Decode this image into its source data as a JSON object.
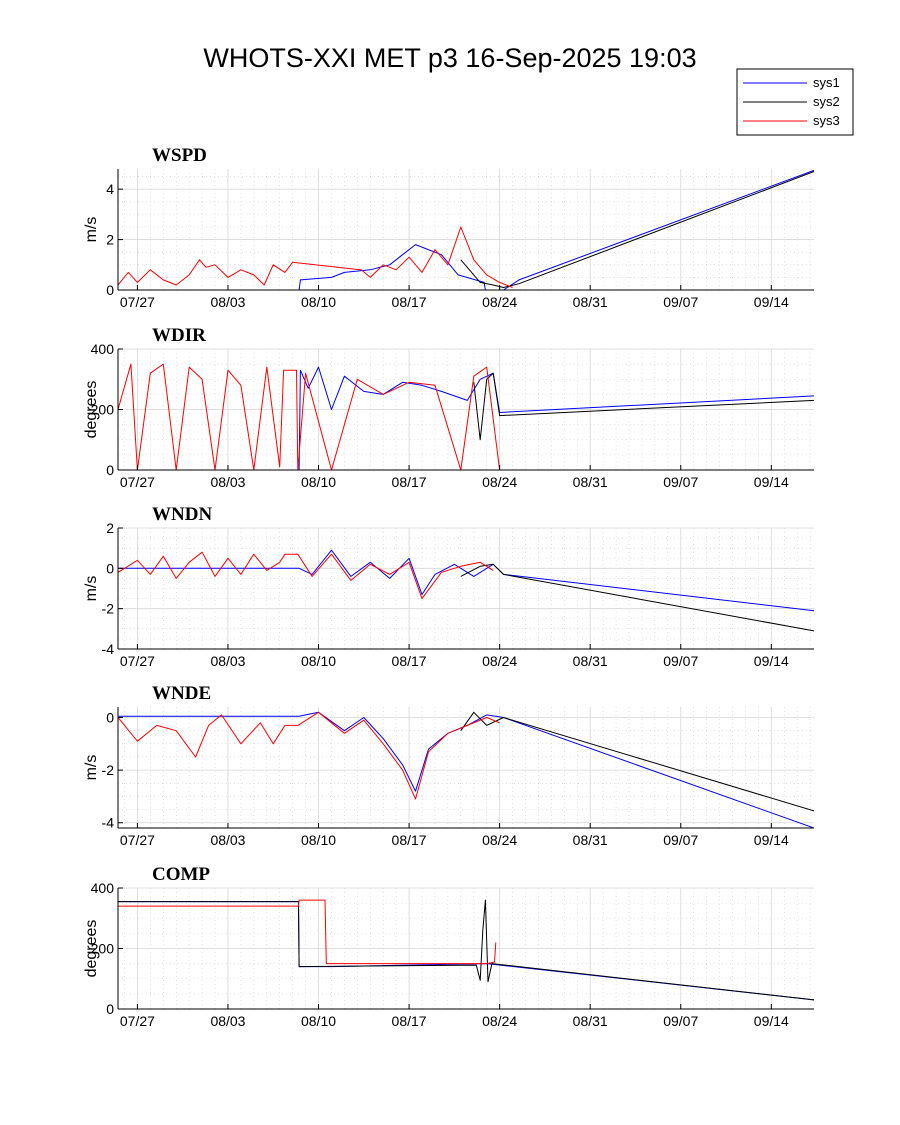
{
  "figure": {
    "title": "WHOTS-XXI MET p3 16-Sep-2025 19:03"
  },
  "legend": {
    "placement": "top-right",
    "entries": [
      {
        "label": "sys1",
        "color": "#0000ff"
      },
      {
        "label": "sys2",
        "color": "#000000"
      },
      {
        "label": "sys3",
        "color": "#ff0000"
      }
    ]
  },
  "chart_data": [
    {
      "type": "line",
      "title": "WSPD",
      "ylabel": "m/s",
      "xlim": [
        -0.5,
        53.3
      ],
      "ylim": [
        0,
        4.8
      ],
      "yticks": [
        0,
        2,
        4
      ],
      "xticks": [
        1,
        8,
        15,
        22,
        29,
        36,
        43,
        50
      ],
      "xticklabels": [
        "07/27",
        "08/03",
        "08/10",
        "08/17",
        "08/24",
        "08/31",
        "09/07",
        "09/14"
      ],
      "grid": true,
      "series": [
        {
          "name": "sys1",
          "color": "#0000ff",
          "x": [
            -0.5,
            13.5,
            13.6,
            16.0,
            17.0,
            19.0,
            20.5,
            21.5,
            22.5,
            24.5,
            25.8,
            27.8,
            27.9,
            29.3,
            30.5,
            53.3
          ],
          "y": [
            0.0,
            0.0,
            0.4,
            0.5,
            0.7,
            0.8,
            1.0,
            1.4,
            1.8,
            1.4,
            0.6,
            0.3,
            0.0,
            0.0,
            0.4,
            4.75
          ]
        },
        {
          "name": "sys2",
          "color": "#000000",
          "x": [
            26.0,
            27.5,
            28.5,
            29.3,
            30.5,
            53.3
          ],
          "y": [
            1.2,
            0.3,
            0.2,
            0.1,
            0.25,
            4.7
          ]
        },
        {
          "name": "sys3",
          "color": "#ff0000",
          "x": [
            -0.5,
            0.3,
            1.0,
            2.0,
            3.0,
            4.0,
            5.0,
            5.8,
            6.3,
            7.0,
            8.0,
            9.0,
            10.0,
            10.8,
            11.5,
            12.4,
            13.0,
            18.2,
            18.3,
            19.0,
            20.0,
            21.0,
            22.0,
            23.0,
            24.0,
            25.0,
            26.0,
            27.0,
            28.0,
            29.0,
            30.0
          ],
          "y": [
            0.2,
            0.7,
            0.3,
            0.8,
            0.4,
            0.2,
            0.6,
            1.2,
            0.9,
            1.0,
            0.5,
            0.8,
            0.6,
            0.2,
            1.0,
            0.7,
            1.1,
            0.8,
            0.8,
            0.5,
            1.0,
            0.8,
            1.3,
            0.7,
            1.6,
            1.0,
            2.5,
            1.2,
            0.6,
            0.3,
            0.1
          ]
        }
      ]
    },
    {
      "type": "line",
      "title": "WDIR",
      "ylabel": "degrees",
      "xlim": [
        -0.5,
        53.3
      ],
      "ylim": [
        0,
        400
      ],
      "yticks": [
        0,
        200,
        400
      ],
      "xticks": [
        1,
        8,
        15,
        22,
        29,
        36,
        43,
        50
      ],
      "xticklabels": [
        "07/27",
        "08/03",
        "08/10",
        "08/17",
        "08/24",
        "08/31",
        "09/07",
        "09/14"
      ],
      "grid": true,
      "series": [
        {
          "name": "sys1",
          "color": "#0000ff",
          "x": [
            -0.5,
            13.5,
            13.6,
            14.2,
            15.0,
            16.0,
            17.0,
            18.5,
            20.0,
            21.5,
            23.0,
            24.5,
            26.5,
            27.5,
            28.5,
            29.0,
            53.3
          ],
          "y": [
            0,
            0,
            330,
            270,
            340,
            200,
            310,
            260,
            250,
            290,
            280,
            260,
            230,
            300,
            320,
            190,
            245
          ]
        },
        {
          "name": "sys2",
          "color": "#000000",
          "x": [
            27.0,
            27.5,
            28.0,
            28.5,
            29.0,
            53.3
          ],
          "y": [
            290,
            100,
            300,
            320,
            180,
            230
          ]
        },
        {
          "name": "sys3",
          "color": "#ff0000",
          "x": [
            -0.5,
            0.5,
            1.0,
            2.0,
            3.0,
            4.0,
            5.0,
            6.0,
            7.0,
            8.0,
            9.0,
            10.0,
            11.0,
            12.0,
            12.3,
            13.3,
            13.4,
            14.0,
            16.0,
            18.0,
            20.0,
            22.0,
            24.0,
            26.0,
            27.0,
            28.0,
            29.0
          ],
          "y": [
            200,
            350,
            0,
            320,
            350,
            0,
            340,
            300,
            0,
            330,
            280,
            0,
            340,
            10,
            330,
            330,
            0,
            320,
            0,
            300,
            250,
            290,
            280,
            0,
            310,
            340,
            0
          ]
        }
      ]
    },
    {
      "type": "line",
      "title": "WNDN",
      "ylabel": "m/s",
      "xlim": [
        -0.5,
        53.3
      ],
      "ylim": [
        -4,
        2
      ],
      "yticks": [
        -4,
        -2,
        0,
        2
      ],
      "xticks": [
        1,
        8,
        15,
        22,
        29,
        36,
        43,
        50
      ],
      "xticklabels": [
        "07/27",
        "08/03",
        "08/10",
        "08/17",
        "08/24",
        "08/31",
        "09/07",
        "09/14"
      ],
      "grid": true,
      "series": [
        {
          "name": "sys1",
          "color": "#0000ff",
          "x": [
            -0.5,
            13.5,
            14.5,
            16.0,
            17.5,
            19.0,
            20.5,
            22.0,
            23.0,
            24.0,
            25.5,
            27.0,
            28.5,
            29.3,
            53.3
          ],
          "y": [
            0,
            0,
            -0.3,
            0.9,
            -0.4,
            0.3,
            -0.5,
            0.5,
            -1.3,
            -0.3,
            0.2,
            -0.4,
            0.2,
            -0.3,
            -2.1
          ]
        },
        {
          "name": "sys2",
          "color": "#000000",
          "x": [
            26.0,
            27.5,
            28.5,
            29.3,
            53.3
          ],
          "y": [
            -0.4,
            0.1,
            0.2,
            -0.3,
            -3.1
          ]
        },
        {
          "name": "sys3",
          "color": "#ff0000",
          "x": [
            -0.5,
            1.0,
            2.0,
            3.0,
            4.0,
            5.0,
            6.0,
            7.0,
            8.0,
            9.0,
            10.0,
            11.0,
            12.0,
            12.4,
            13.4,
            14.5,
            16.0,
            17.5,
            19.0,
            20.5,
            22.0,
            23.0,
            24.5,
            26.0,
            27.5,
            28.5
          ],
          "y": [
            -0.2,
            0.4,
            -0.3,
            0.6,
            -0.5,
            0.3,
            0.8,
            -0.4,
            0.5,
            -0.3,
            0.7,
            -0.1,
            0.3,
            0.7,
            0.7,
            -0.4,
            0.7,
            -0.6,
            0.2,
            -0.3,
            0.3,
            -1.5,
            -0.2,
            0.1,
            0.3,
            -0.1
          ]
        }
      ]
    },
    {
      "type": "line",
      "title": "WNDE",
      "ylabel": "m/s",
      "xlim": [
        -0.5,
        53.3
      ],
      "ylim": [
        -4.2,
        0.4
      ],
      "yticks": [
        -4,
        -2,
        0
      ],
      "xticks": [
        1,
        8,
        15,
        22,
        29,
        36,
        43,
        50
      ],
      "xticklabels": [
        "07/27",
        "08/03",
        "08/10",
        "08/17",
        "08/24",
        "08/31",
        "09/07",
        "09/14"
      ],
      "grid": true,
      "series": [
        {
          "name": "sys1",
          "color": "#0000ff",
          "x": [
            -0.5,
            13.5,
            15.0,
            17.0,
            18.5,
            20.0,
            21.5,
            22.5,
            23.5,
            25.0,
            26.5,
            28.0,
            29.3,
            53.3
          ],
          "y": [
            0.05,
            0.05,
            0.2,
            -0.5,
            0.0,
            -0.8,
            -1.8,
            -2.8,
            -1.2,
            -0.6,
            -0.3,
            0.1,
            0.0,
            -4.2
          ]
        },
        {
          "name": "sys2",
          "color": "#000000",
          "x": [
            26.0,
            27.0,
            28.0,
            29.3,
            53.3
          ],
          "y": [
            -0.5,
            0.2,
            -0.3,
            0.0,
            -3.55
          ]
        },
        {
          "name": "sys3",
          "color": "#ff0000",
          "x": [
            -0.5,
            1.0,
            2.5,
            4.0,
            5.5,
            6.5,
            7.5,
            9.0,
            10.5,
            11.5,
            12.4,
            13.4,
            15.0,
            17.0,
            18.5,
            20.0,
            21.5,
            22.5,
            23.5,
            25.0,
            26.5,
            28.0,
            29.0
          ],
          "y": [
            0.0,
            -0.9,
            -0.3,
            -0.5,
            -1.5,
            -0.3,
            0.1,
            -1.0,
            -0.2,
            -1.0,
            -0.3,
            -0.3,
            0.2,
            -0.6,
            -0.1,
            -1.0,
            -2.0,
            -3.1,
            -1.3,
            -0.6,
            -0.3,
            0.0,
            -0.2
          ]
        }
      ]
    },
    {
      "type": "line",
      "title": "COMP",
      "ylabel": "degrees",
      "xlim": [
        -0.5,
        53.3
      ],
      "ylim": [
        0,
        400
      ],
      "yticks": [
        0,
        200,
        400
      ],
      "xticks": [
        1,
        8,
        15,
        22,
        29,
        36,
        43,
        50
      ],
      "xticklabels": [
        "07/27",
        "08/03",
        "08/10",
        "08/17",
        "08/24",
        "08/31",
        "09/07",
        "09/14"
      ],
      "grid": true,
      "series": [
        {
          "name": "sys1",
          "color": "#0000ff",
          "x": [
            -0.5,
            13.45,
            13.5,
            16.0,
            28.0,
            53.3
          ],
          "y": [
            355,
            355,
            140,
            140,
            150,
            30
          ]
        },
        {
          "name": "sys2",
          "color": "#000000",
          "x": [
            -0.5,
            13.45,
            13.5,
            27.2,
            27.5,
            27.7,
            27.9,
            28.1,
            28.4,
            53.3
          ],
          "y": [
            355,
            355,
            140,
            145,
            95,
            260,
            360,
            90,
            150,
            30
          ]
        },
        {
          "name": "sys3",
          "color": "#ff0000",
          "x": [
            -0.5,
            13.45,
            13.5,
            15.5,
            15.6,
            28.0,
            28.6,
            28.7
          ],
          "y": [
            340,
            340,
            360,
            360,
            150,
            150,
            155,
            220
          ]
        }
      ]
    }
  ]
}
